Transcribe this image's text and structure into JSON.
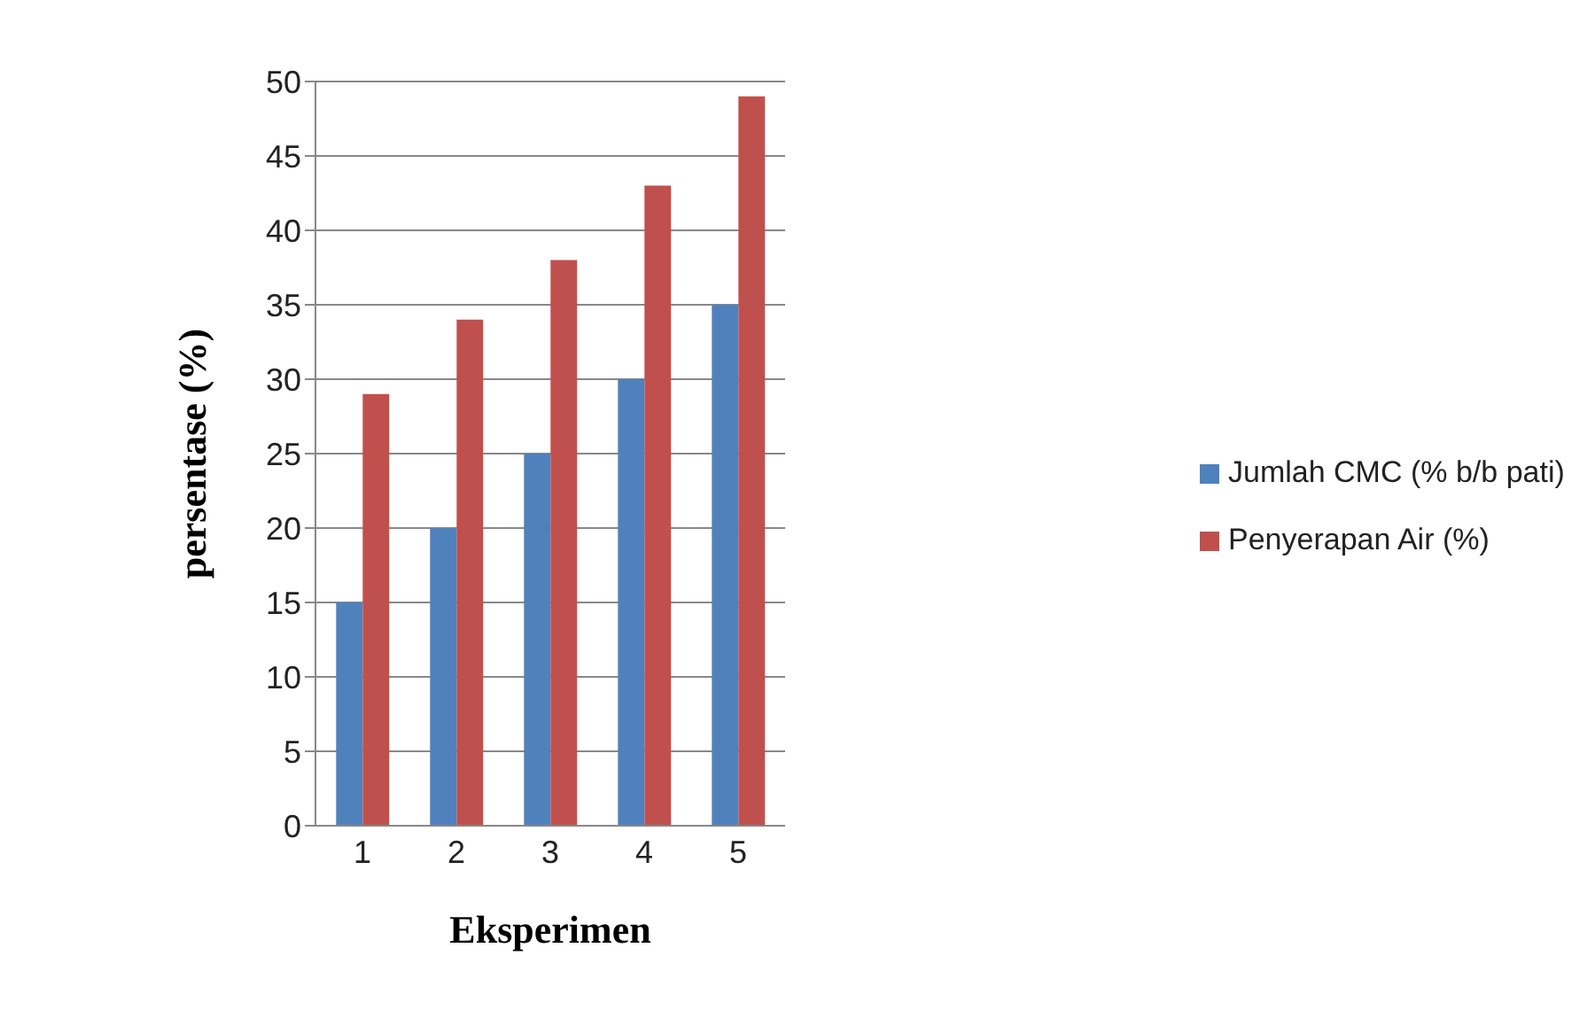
{
  "chart_data": {
    "type": "bar",
    "xlabel": "Eksperimen",
    "ylabel": "persentase (%)",
    "categories": [
      "1",
      "2",
      "3",
      "4",
      "5"
    ],
    "series": [
      {
        "name": "Jumlah CMC (% b/b pati)",
        "color": "#4f81bd",
        "values": [
          15,
          20,
          25,
          30,
          35
        ]
      },
      {
        "name": "Penyerapan Air (%)",
        "color": "#c0504d",
        "values": [
          29,
          34,
          38,
          43,
          49
        ]
      }
    ],
    "ylim": [
      0,
      50
    ],
    "yticks": [
      0,
      5,
      10,
      15,
      20,
      25,
      30,
      35,
      40,
      45,
      50
    ],
    "grid": "y",
    "legend": "right"
  }
}
